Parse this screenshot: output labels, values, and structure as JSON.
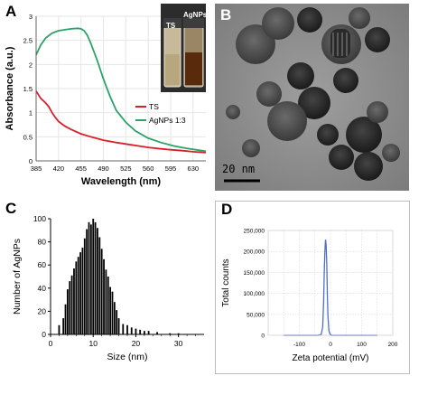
{
  "panels": {
    "a": "A",
    "b": "B",
    "c": "C",
    "d": "D"
  },
  "panel_b": {
    "scale_bar_label": "20 nm",
    "inset_labels": [
      "TS",
      "AgNPs"
    ]
  },
  "chart_data": [
    {
      "type": "line",
      "xlabel": "Wavelength (nm)",
      "ylabel": "Absorbance (a.u.)",
      "xlim": [
        385,
        650
      ],
      "ylim": [
        0,
        3
      ],
      "xticks": [
        385,
        420,
        455,
        490,
        525,
        560,
        595,
        630
      ],
      "yticks": [
        0,
        0.5,
        1,
        1.5,
        2,
        2.5,
        3
      ],
      "ytick_labels": [
        "0",
        "0.5",
        "1",
        "1.5",
        "2",
        "2.5",
        "3"
      ],
      "legend_position": "right",
      "series": [
        {
          "name": "TS",
          "color": "#d9202a",
          "x": [
            385,
            392,
            400,
            405,
            410,
            415,
            420,
            430,
            440,
            455,
            470,
            490,
            510,
            525,
            545,
            560,
            580,
            595,
            615,
            630,
            650
          ],
          "y": [
            1.45,
            1.3,
            1.2,
            1.12,
            1.0,
            0.9,
            0.82,
            0.72,
            0.65,
            0.56,
            0.5,
            0.43,
            0.38,
            0.35,
            0.31,
            0.28,
            0.25,
            0.23,
            0.21,
            0.19,
            0.17
          ]
        },
        {
          "name": "AgNPs 1:3",
          "color": "#2aa36a",
          "x": [
            385,
            392,
            400,
            410,
            420,
            430,
            440,
            450,
            455,
            460,
            465,
            470,
            480,
            490,
            500,
            510,
            525,
            540,
            560,
            580,
            600,
            620,
            640,
            650
          ],
          "y": [
            2.2,
            2.4,
            2.55,
            2.65,
            2.7,
            2.72,
            2.74,
            2.75,
            2.74,
            2.7,
            2.6,
            2.45,
            2.1,
            1.7,
            1.35,
            1.05,
            0.8,
            0.62,
            0.47,
            0.38,
            0.31,
            0.26,
            0.22,
            0.2
          ]
        }
      ]
    },
    {
      "type": "bar",
      "xlabel": "Size (nm)",
      "ylabel": "Number of AgNPs",
      "xlim": [
        0,
        36
      ],
      "ylim": [
        0,
        100
      ],
      "xticks": [
        0,
        10,
        20,
        30
      ],
      "yticks": [
        0,
        20,
        40,
        60,
        80,
        100
      ],
      "x": [
        2,
        3,
        3.5,
        4,
        4.5,
        5,
        5.5,
        6,
        6.5,
        7,
        7.5,
        8,
        8.5,
        9,
        9.5,
        10,
        10.5,
        11,
        11.5,
        12,
        12.5,
        13,
        13.5,
        14,
        14.5,
        15,
        15.5,
        16,
        17,
        18,
        19,
        20,
        21,
        22,
        23,
        25,
        28,
        30
      ],
      "values": [
        8,
        14,
        26,
        39,
        46,
        51,
        57,
        63,
        67,
        71,
        75,
        83,
        91,
        97,
        95,
        100,
        97,
        92,
        84,
        74,
        65,
        56,
        50,
        41,
        37,
        28,
        21,
        14,
        9,
        8,
        6,
        5,
        4,
        3,
        3,
        2,
        1,
        1
      ],
      "color": "#000000"
    },
    {
      "type": "line",
      "xlabel": "Zeta potential (mV)",
      "ylabel": "Total counts",
      "xlim": [
        -200,
        200
      ],
      "ylim": [
        0,
        250000
      ],
      "xticks": [
        -100,
        0,
        100,
        200
      ],
      "yticks": [
        0,
        50000,
        100000,
        150000,
        200000,
        250000
      ],
      "ytick_labels": [
        "0",
        "50,000",
        "100,000",
        "150,000",
        "200,000",
        "250,000"
      ],
      "series": [
        {
          "color": "#4a6fd0",
          "x": [
            -150,
            -40,
            -30,
            -25,
            -22,
            -20,
            -18,
            -16,
            -14,
            -12,
            -10,
            -8,
            -5,
            0,
            5,
            150
          ],
          "y": [
            0,
            0,
            2000,
            20000,
            80000,
            150000,
            200000,
            228000,
            215000,
            170000,
            100000,
            45000,
            10000,
            1000,
            0,
            0
          ]
        }
      ]
    }
  ]
}
